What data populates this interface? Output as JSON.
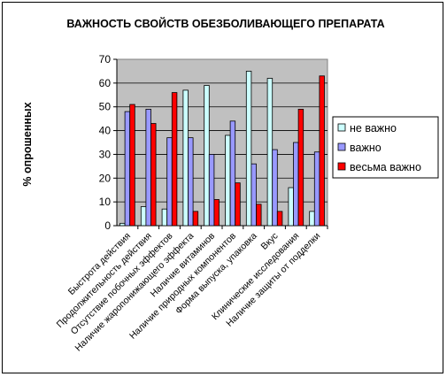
{
  "chart_data": {
    "type": "bar",
    "title": "ВАЖНОСТЬ СВОЙСТВ ОБЕЗБОЛИВАЮЩЕГО ПРЕПАРАТА",
    "xlabel": "",
    "ylabel": "% опрошенных",
    "ylim": [
      0,
      70
    ],
    "yticks": [
      "0",
      "10",
      "20",
      "30",
      "40",
      "50",
      "60",
      "70"
    ],
    "grid": true,
    "legend_position": "right",
    "plot_background": "#c0c0c0",
    "categories": [
      "Быстрота действия",
      "Продолжительность действия",
      "Отсутствие побочных эффектов",
      "Наличие жаропонижающего эффекта",
      "Наличие витаминов",
      "Наличие природных компонентов",
      "Форма выпуска, упаковка",
      "Вкус",
      "Клинические исследования",
      "Наличие защиты от подделки"
    ],
    "series": [
      {
        "name": "не важно",
        "color": "#ccffff",
        "values": [
          1,
          8,
          7,
          57,
          59,
          38,
          65,
          62,
          16,
          6
        ]
      },
      {
        "name": "важно",
        "color": "#9999ff",
        "values": [
          48,
          49,
          37,
          37,
          30,
          44,
          26,
          32,
          35,
          31
        ]
      },
      {
        "name": "весьма важно",
        "color": "#ff0000",
        "values": [
          51,
          43,
          56,
          6,
          11,
          18,
          9,
          6,
          49,
          63
        ]
      }
    ]
  }
}
